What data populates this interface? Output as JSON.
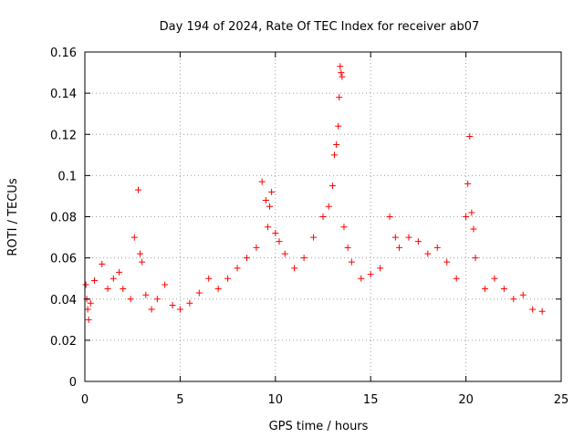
{
  "chart_data": {
    "type": "scatter",
    "title": "Day 194 of 2024, Rate Of TEC Index for receiver ab07",
    "xlabel": "GPS time / hours",
    "ylabel": "ROTI / TECUs",
    "xlim": [
      0,
      25
    ],
    "ylim": [
      0,
      0.16
    ],
    "x_ticks": [
      "0",
      "5",
      "10",
      "15",
      "20",
      "25"
    ],
    "y_ticks": [
      "0",
      "0.02",
      "0.04",
      "0.06",
      "0.08",
      "0.1",
      "0.12",
      "0.14",
      "0.16"
    ],
    "grid": true,
    "marker": "plus",
    "point_color": "#ff0000",
    "series": [
      {
        "x": [
          0.05,
          0.1,
          0.15,
          0.2,
          0.3,
          0.5,
          0.9,
          1.2,
          1.5,
          1.8,
          2.0,
          2.4,
          2.6,
          2.8,
          2.9,
          3.0,
          3.2,
          3.5,
          3.8,
          4.2,
          4.6,
          5.0,
          5.5,
          6.0,
          6.5,
          7.0,
          7.5,
          8.0,
          8.5,
          9.0,
          9.3,
          9.5,
          9.6,
          9.7,
          9.8,
          10.0,
          10.2,
          10.5,
          11.0,
          11.5,
          12.0,
          12.5,
          12.8,
          13.0,
          13.1,
          13.2,
          13.3,
          13.35,
          13.4,
          13.45,
          13.5,
          13.6,
          13.8,
          14.0,
          14.5,
          15.0,
          15.5,
          16.0,
          16.3,
          16.5,
          17.0,
          17.5,
          18.0,
          18.5,
          19.0,
          19.5,
          20.0,
          20.1,
          20.2,
          20.3,
          20.4,
          20.5,
          21.0,
          21.5,
          22.0,
          22.5,
          23.0,
          23.5,
          24.0
        ],
        "y": [
          0.047,
          0.04,
          0.035,
          0.03,
          0.038,
          0.049,
          0.057,
          0.045,
          0.05,
          0.053,
          0.045,
          0.04,
          0.07,
          0.093,
          0.062,
          0.058,
          0.042,
          0.035,
          0.04,
          0.047,
          0.037,
          0.035,
          0.038,
          0.043,
          0.05,
          0.045,
          0.05,
          0.055,
          0.06,
          0.065,
          0.097,
          0.088,
          0.075,
          0.085,
          0.092,
          0.072,
          0.068,
          0.062,
          0.055,
          0.06,
          0.07,
          0.08,
          0.085,
          0.095,
          0.11,
          0.115,
          0.124,
          0.138,
          0.153,
          0.15,
          0.148,
          0.075,
          0.065,
          0.058,
          0.05,
          0.052,
          0.055,
          0.08,
          0.07,
          0.065,
          0.07,
          0.068,
          0.062,
          0.065,
          0.058,
          0.05,
          0.08,
          0.096,
          0.119,
          0.082,
          0.074,
          0.06,
          0.045,
          0.05,
          0.045,
          0.04,
          0.042,
          0.035,
          0.034
        ]
      }
    ]
  }
}
